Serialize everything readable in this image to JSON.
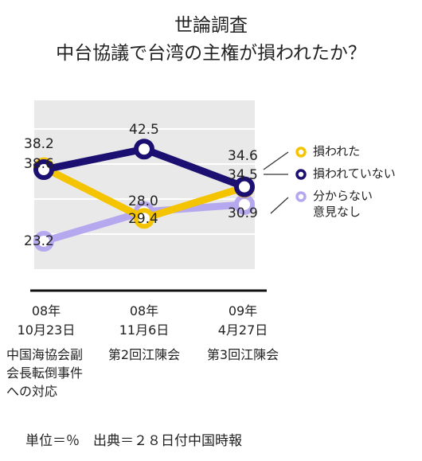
{
  "title_line1": "世論調査",
  "title_line2": "中台協議で台湾の主権が損われたか？",
  "chart_data": {
    "type": "line",
    "title": "世論調査 中台協議で台湾の主権が損われたか？",
    "categories": [
      {
        "year": "08年",
        "date": "10月23日",
        "event": [
          "中国海協会副",
          "会長転倒事件",
          "への対応"
        ]
      },
      {
        "year": "08年",
        "date": "11月6日",
        "event": [
          "第2回江陳会"
        ]
      },
      {
        "year": "09年",
        "date": "4月27日",
        "event": [
          "第3回江陳会"
        ]
      }
    ],
    "series": [
      {
        "name": "損われた",
        "values": [
          38.6,
          28.0,
          34.5
        ],
        "color": "#f5c400"
      },
      {
        "name": "損われていない",
        "values": [
          38.2,
          42.5,
          34.6
        ],
        "color": "#1c0f72"
      },
      {
        "name": "分からない\n意見なし",
        "values": [
          23.2,
          29.4,
          30.9
        ],
        "color": "#b6a8ef"
      }
    ],
    "legend": [
      "損われた",
      "損われていない",
      "分からない",
      "意見なし"
    ],
    "unit": "単位＝％",
    "source": "出典＝２８日付中国時報"
  },
  "labels": {
    "dis_1": "38.6",
    "dis_2": "28.0",
    "dis_3": "34.5",
    "not_1": "38.2",
    "not_2": "42.5",
    "not_3": "34.6",
    "unk_1": "23.2",
    "unk_2": "29.4",
    "unk_3": "30.9"
  },
  "footer": "単位＝％　出典＝２８日付中国時報"
}
